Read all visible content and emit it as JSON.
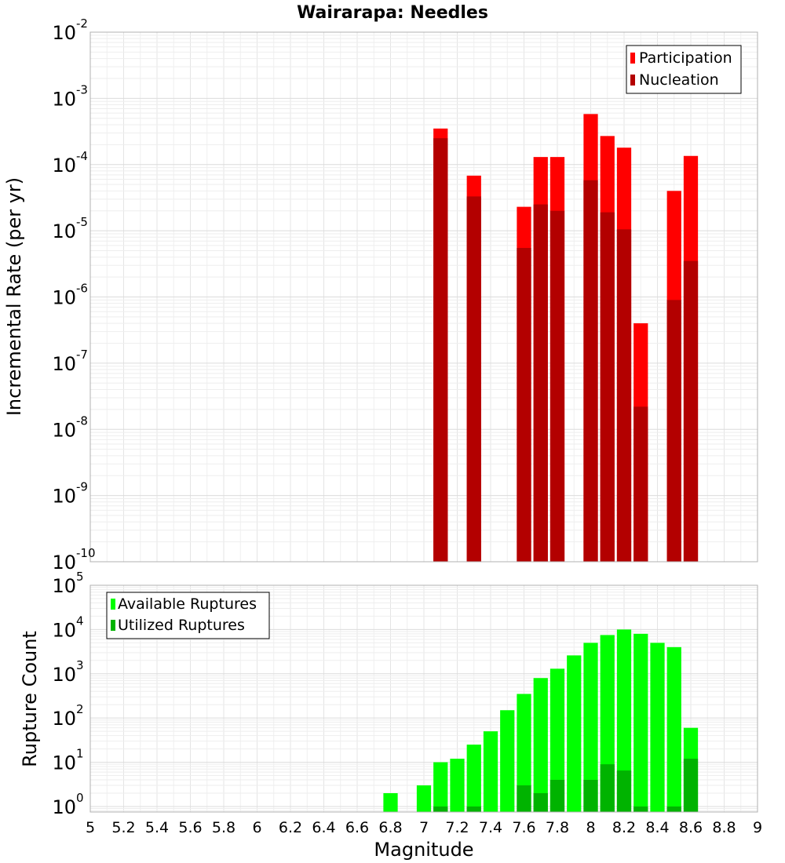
{
  "title": "Wairarapa: Needles",
  "chart_data": [
    {
      "type": "bar",
      "panel": "incremental-rate",
      "ylabel": "Incremental Rate (per yr)",
      "yscale": "log",
      "ylim": [
        1e-10,
        0.01
      ],
      "ytick_base": "10",
      "ytick_exponents": [
        "-10",
        "-9",
        "-8",
        "-7",
        "-6",
        "-5",
        "-4",
        "-3",
        "-2"
      ],
      "xlim": [
        5,
        9
      ],
      "grid": true,
      "legend_position": "top-right",
      "x": [
        7.1,
        7.3,
        7.6,
        7.7,
        7.8,
        8.0,
        8.1,
        8.2,
        8.3,
        8.5,
        8.6
      ],
      "series": [
        {
          "name": "Participation",
          "color": "#ff0000",
          "values": [
            0.00035,
            6.8e-05,
            2.3e-05,
            0.00013,
            0.00013,
            0.00058,
            0.00027,
            0.00018,
            4e-07,
            4e-05,
            0.000135
          ]
        },
        {
          "name": "Nucleation",
          "color": "#b30000",
          "values": [
            0.00025,
            3.3e-05,
            5.5e-06,
            2.5e-05,
            2e-05,
            5.8e-05,
            1.9e-05,
            1.05e-05,
            2.2e-08,
            9e-07,
            3.5e-06
          ]
        }
      ]
    },
    {
      "type": "bar",
      "panel": "rupture-count",
      "ylabel": "Rupture Count",
      "xlabel": "Magnitude",
      "yscale": "log",
      "ylim": [
        0.75,
        100000
      ],
      "ytick_base": "10",
      "ytick_exponents": [
        "0",
        "1",
        "2",
        "3",
        "4",
        "5"
      ],
      "xlim": [
        5,
        9
      ],
      "xticks": [
        "5",
        "5.2",
        "5.4",
        "5.6",
        "5.8",
        "6",
        "6.2",
        "6.4",
        "6.6",
        "6.8",
        "7",
        "7.2",
        "7.4",
        "7.6",
        "7.8",
        "8",
        "8.2",
        "8.4",
        "8.6",
        "8.8",
        "9"
      ],
      "grid": true,
      "legend_position": "top-left",
      "x": [
        6.8,
        7.0,
        7.1,
        7.2,
        7.3,
        7.4,
        7.5,
        7.6,
        7.7,
        7.8,
        7.9,
        8.0,
        8.1,
        8.2,
        8.3,
        8.4,
        8.5,
        8.6
      ],
      "series": [
        {
          "name": "Available Ruptures",
          "color": "#00ff00",
          "values": [
            2,
            3,
            10,
            12,
            25,
            50,
            150,
            350,
            800,
            1300,
            2600,
            5000,
            7500,
            10000,
            8000,
            5000,
            4000,
            60
          ]
        },
        {
          "name": "Utilized Ruptures",
          "color": "#00b300",
          "values": [
            0,
            0,
            1,
            0,
            1,
            0,
            0,
            3,
            2,
            4,
            0,
            4,
            9,
            6.5,
            1,
            0,
            1,
            12
          ]
        }
      ]
    }
  ]
}
